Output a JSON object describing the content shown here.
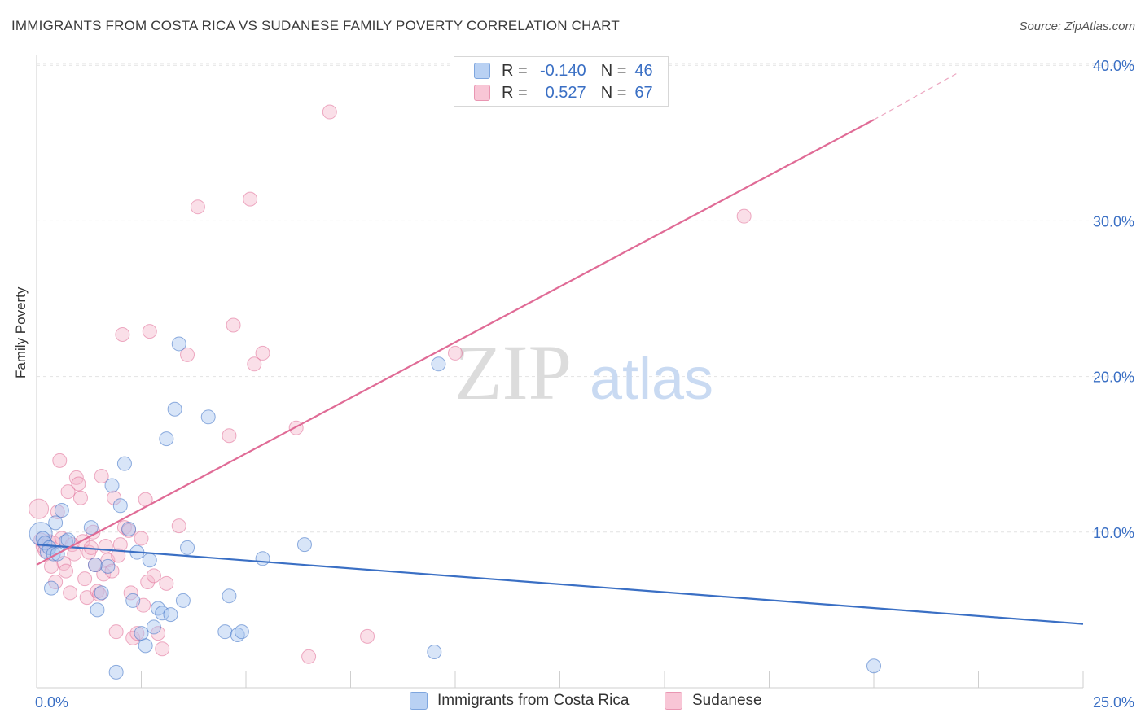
{
  "title": "IMMIGRANTS FROM COSTA RICA VS SUDANESE FAMILY POVERTY CORRELATION CHART",
  "source": "Source: ZipAtlas.com",
  "watermark": {
    "zip": "ZIP",
    "atlas": "atlas"
  },
  "legend": {
    "rows": [
      {
        "r_label": "R =",
        "r_value": "-0.140",
        "n_label": "N =",
        "n_value": "46"
      },
      {
        "r_label": "R =",
        "r_value": "0.527",
        "n_label": "N =",
        "n_value": "67"
      }
    ]
  },
  "bottom_legend": {
    "blue": "Immigrants from Costa Rica",
    "pink": "Sudanese"
  },
  "colors": {
    "blue": "#3a6fc4",
    "blue_fill": "#a8c6f0",
    "pink": "#e06b96",
    "pink_fill": "#f5b8cc",
    "grid": "#e2e2e2",
    "axis_text": "#3a6fc4"
  },
  "chart_data": {
    "type": "scatter",
    "title": "IMMIGRANTS FROM COSTA RICA VS SUDANESE FAMILY POVERTY CORRELATION CHART",
    "xlabel": "",
    "ylabel": "Family Poverty",
    "xlim": [
      0,
      25
    ],
    "ylim": [
      0,
      42
    ],
    "x_tick_labels": [
      "0.0%",
      "25.0%"
    ],
    "y_ticks": [
      10,
      20,
      30,
      40
    ],
    "y_tick_labels": [
      "10.0%",
      "20.0%",
      "30.0%",
      "40.0%"
    ],
    "series": [
      {
        "name": "Immigrants from Costa Rica",
        "color": "blue",
        "points": [
          [
            0.1,
            9.9
          ],
          [
            0.15,
            9.6
          ],
          [
            0.2,
            9.3
          ],
          [
            0.25,
            8.7
          ],
          [
            0.3,
            9.0
          ],
          [
            0.35,
            6.4
          ],
          [
            0.4,
            8.6
          ],
          [
            0.45,
            10.6
          ],
          [
            0.5,
            8.6
          ],
          [
            0.6,
            11.4
          ],
          [
            0.7,
            9.4
          ],
          [
            0.75,
            9.5
          ],
          [
            1.3,
            10.3
          ],
          [
            1.4,
            7.9
          ],
          [
            1.45,
            5.0
          ],
          [
            1.55,
            6.1
          ],
          [
            1.7,
            7.8
          ],
          [
            1.8,
            13.0
          ],
          [
            1.9,
            1.0
          ],
          [
            2.0,
            11.7
          ],
          [
            2.1,
            14.4
          ],
          [
            2.2,
            10.2
          ],
          [
            2.3,
            5.6
          ],
          [
            2.4,
            8.7
          ],
          [
            2.5,
            3.5
          ],
          [
            2.6,
            2.7
          ],
          [
            2.7,
            8.2
          ],
          [
            2.8,
            3.9
          ],
          [
            2.9,
            5.1
          ],
          [
            3.0,
            4.8
          ],
          [
            3.1,
            16.0
          ],
          [
            3.2,
            4.7
          ],
          [
            3.3,
            17.9
          ],
          [
            3.4,
            22.1
          ],
          [
            3.5,
            5.6
          ],
          [
            3.6,
            9.0
          ],
          [
            4.1,
            17.4
          ],
          [
            4.5,
            3.6
          ],
          [
            4.6,
            5.9
          ],
          [
            4.8,
            3.4
          ],
          [
            4.9,
            3.6
          ],
          [
            5.4,
            8.3
          ],
          [
            6.4,
            9.2
          ],
          [
            9.5,
            2.3
          ],
          [
            9.6,
            20.8
          ],
          [
            20.0,
            1.4
          ]
        ],
        "trend": {
          "x": [
            0,
            25
          ],
          "y": [
            9.2,
            4.1
          ]
        }
      },
      {
        "name": "Sudanese",
        "color": "pink",
        "points": [
          [
            0.05,
            11.5
          ],
          [
            0.1,
            9.5
          ],
          [
            0.15,
            9.1
          ],
          [
            0.2,
            8.8
          ],
          [
            0.3,
            9.4
          ],
          [
            0.4,
            9.3
          ],
          [
            0.45,
            6.8
          ],
          [
            0.5,
            11.3
          ],
          [
            0.55,
            14.6
          ],
          [
            0.6,
            9.6
          ],
          [
            0.65,
            8.0
          ],
          [
            0.7,
            7.5
          ],
          [
            0.8,
            6.1
          ],
          [
            0.85,
            9.2
          ],
          [
            0.9,
            8.6
          ],
          [
            0.95,
            13.5
          ],
          [
            1.0,
            13.1
          ],
          [
            1.05,
            12.2
          ],
          [
            1.1,
            9.4
          ],
          [
            1.2,
            5.8
          ],
          [
            1.25,
            8.7
          ],
          [
            1.3,
            9.0
          ],
          [
            1.35,
            10.0
          ],
          [
            1.4,
            7.9
          ],
          [
            1.45,
            6.2
          ],
          [
            1.5,
            6.0
          ],
          [
            1.55,
            13.6
          ],
          [
            1.6,
            7.3
          ],
          [
            1.65,
            9.1
          ],
          [
            1.7,
            8.2
          ],
          [
            1.8,
            7.5
          ],
          [
            1.85,
            12.2
          ],
          [
            1.9,
            3.6
          ],
          [
            1.95,
            8.5
          ],
          [
            2.0,
            9.2
          ],
          [
            2.05,
            22.7
          ],
          [
            2.1,
            10.3
          ],
          [
            2.2,
            10.1
          ],
          [
            2.25,
            6.1
          ],
          [
            2.3,
            3.2
          ],
          [
            2.4,
            3.5
          ],
          [
            2.5,
            9.6
          ],
          [
            2.55,
            5.3
          ],
          [
            2.6,
            12.1
          ],
          [
            2.65,
            6.8
          ],
          [
            2.7,
            22.9
          ],
          [
            2.8,
            7.2
          ],
          [
            2.9,
            3.5
          ],
          [
            3.0,
            2.5
          ],
          [
            3.1,
            6.7
          ],
          [
            3.4,
            10.4
          ],
          [
            3.6,
            21.4
          ],
          [
            3.85,
            30.9
          ],
          [
            4.6,
            16.2
          ],
          [
            4.7,
            23.3
          ],
          [
            5.1,
            31.4
          ],
          [
            5.2,
            20.8
          ],
          [
            5.4,
            21.5
          ],
          [
            6.2,
            16.7
          ],
          [
            6.5,
            2.0
          ],
          [
            7.0,
            37.0
          ],
          [
            7.9,
            3.3
          ],
          [
            10.0,
            21.5
          ],
          [
            16.9,
            30.3
          ],
          [
            0.35,
            7.8
          ],
          [
            0.75,
            12.6
          ],
          [
            1.15,
            7.0
          ]
        ],
        "trend": {
          "x": [
            0,
            20.0
          ],
          "y": [
            7.9,
            36.5
          ]
        },
        "trend_dashed": {
          "x": [
            20.0,
            22.0
          ],
          "y": [
            36.5,
            39.5
          ]
        }
      }
    ]
  }
}
